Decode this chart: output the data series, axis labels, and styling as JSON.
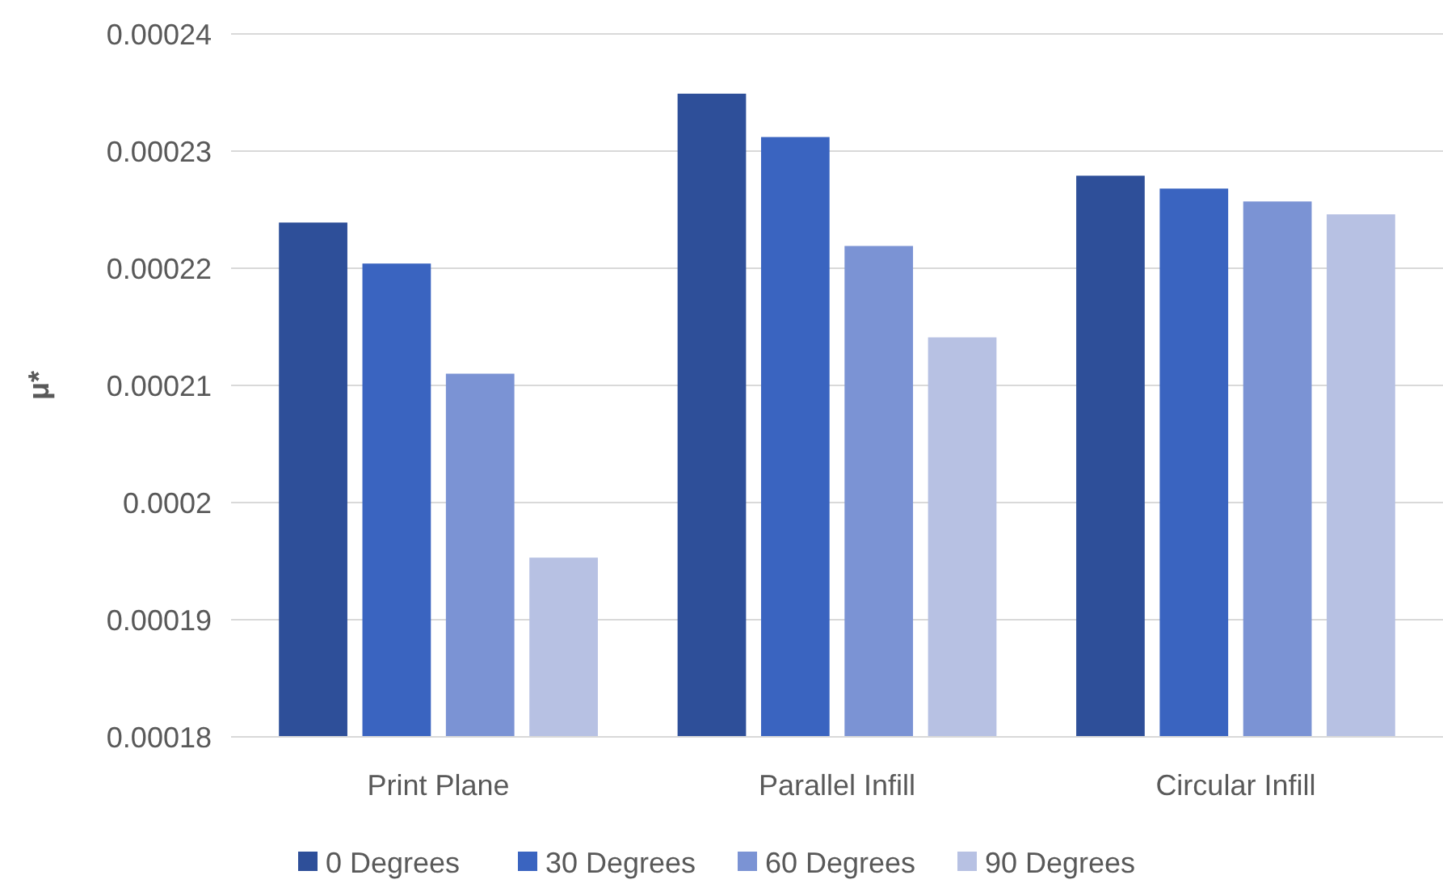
{
  "chart_data": {
    "type": "bar",
    "ylabel": "μ*",
    "categories": [
      "Print Plane",
      "Parallel Infill",
      "Circular Infill"
    ],
    "series": [
      {
        "name": "0 Degrees",
        "color": "#2e4f99",
        "values": [
          0.0002239,
          0.0002349,
          0.0002279
        ]
      },
      {
        "name": "30 Degrees",
        "color": "#3a64c0",
        "values": [
          0.0002204,
          0.0002312,
          0.0002268
        ]
      },
      {
        "name": "60 Degrees",
        "color": "#7b93d4",
        "values": [
          0.000211,
          0.0002219,
          0.0002257
        ]
      },
      {
        "name": "90 Degrees",
        "color": "#b7c1e3",
        "values": [
          0.0001953,
          0.0002141,
          0.0002246
        ]
      }
    ],
    "ylim": [
      0.00018,
      0.00024
    ],
    "yticks": [
      0.00018,
      0.00019,
      0.0002,
      0.00021,
      0.00022,
      0.00023,
      0.00024
    ],
    "grid": "y",
    "legend": "bottom"
  }
}
